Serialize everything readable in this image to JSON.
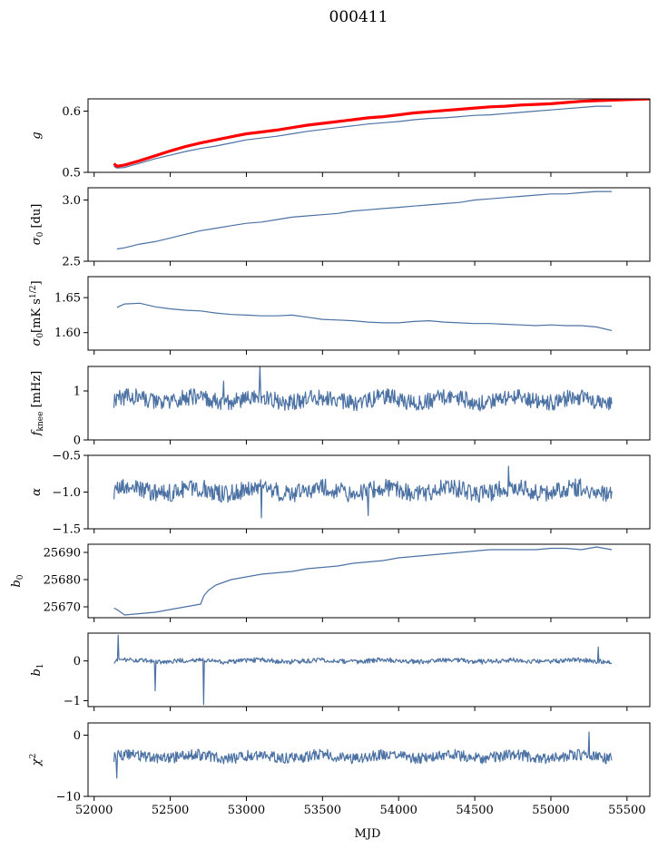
{
  "title": "000411",
  "xlabel": "MJD",
  "colors": {
    "series": "#4c72a4",
    "reference": "#ff0000",
    "axes": "#000000"
  },
  "chart_data": [
    {
      "type": "line",
      "id": "g",
      "ylabel": "g",
      "xlim": [
        51960,
        55650
      ],
      "ylim": [
        0.5,
        0.62
      ],
      "yticks": [
        0.5,
        0.6
      ],
      "ytick_labels": [
        "0.5",
        "0.6"
      ],
      "series": [
        {
          "style": "thin-blue",
          "x": [
            52130,
            52150,
            52200,
            52300,
            52400,
            52500,
            52600,
            52700,
            52800,
            52900,
            53000,
            53100,
            53200,
            53300,
            53400,
            53500,
            53600,
            53700,
            53800,
            53900,
            54000,
            54100,
            54200,
            54300,
            54400,
            54500,
            54600,
            54700,
            54800,
            54900,
            55000,
            55100,
            55200,
            55300,
            55400
          ],
          "y": [
            0.51,
            0.507,
            0.508,
            0.515,
            0.522,
            0.528,
            0.534,
            0.539,
            0.543,
            0.548,
            0.553,
            0.556,
            0.559,
            0.563,
            0.567,
            0.57,
            0.573,
            0.576,
            0.579,
            0.581,
            0.583,
            0.586,
            0.588,
            0.589,
            0.591,
            0.593,
            0.594,
            0.596,
            0.598,
            0.6,
            0.602,
            0.604,
            0.606,
            0.608,
            0.608
          ]
        },
        {
          "style": "thick-red",
          "x": [
            52130,
            52150,
            52200,
            52300,
            52400,
            52500,
            52600,
            52700,
            52800,
            52900,
            53000,
            53100,
            53200,
            53300,
            53400,
            53500,
            53600,
            53700,
            53800,
            53900,
            54000,
            54100,
            54200,
            54300,
            54400,
            54500,
            54600,
            54700,
            54800,
            54900,
            55000,
            55100,
            55200,
            55300,
            55400,
            55650
          ],
          "y": [
            0.514,
            0.51,
            0.512,
            0.519,
            0.527,
            0.535,
            0.542,
            0.548,
            0.553,
            0.558,
            0.563,
            0.566,
            0.569,
            0.573,
            0.577,
            0.58,
            0.583,
            0.586,
            0.589,
            0.591,
            0.594,
            0.597,
            0.599,
            0.601,
            0.603,
            0.605,
            0.607,
            0.608,
            0.61,
            0.611,
            0.612,
            0.614,
            0.616,
            0.617,
            0.618,
            0.62
          ]
        }
      ]
    },
    {
      "type": "line",
      "id": "sigma0_du",
      "ylabel": "σ0 [du]",
      "xlim": [
        51960,
        55650
      ],
      "ylim": [
        2.5,
        3.1
      ],
      "yticks": [
        2.5,
        3.0
      ],
      "ytick_labels": [
        "2.5",
        "3.0"
      ],
      "series": [
        {
          "style": "blue",
          "x": [
            52150,
            52200,
            52300,
            52400,
            52500,
            52600,
            52700,
            52800,
            52900,
            53000,
            53100,
            53200,
            53300,
            53400,
            53500,
            53600,
            53700,
            53800,
            53900,
            54000,
            54100,
            54200,
            54300,
            54400,
            54500,
            54600,
            54700,
            54800,
            54900,
            55000,
            55100,
            55200,
            55300,
            55400
          ],
          "y": [
            2.6,
            2.61,
            2.64,
            2.66,
            2.69,
            2.72,
            2.75,
            2.77,
            2.79,
            2.81,
            2.82,
            2.84,
            2.86,
            2.87,
            2.88,
            2.89,
            2.91,
            2.92,
            2.93,
            2.94,
            2.95,
            2.96,
            2.97,
            2.98,
            3.0,
            3.01,
            3.02,
            3.03,
            3.04,
            3.05,
            3.05,
            3.06,
            3.07,
            3.07
          ]
        }
      ]
    },
    {
      "type": "line",
      "id": "sigma0_mks",
      "ylabel": "σ0[mK s^1/2]",
      "xlim": [
        51960,
        55650
      ],
      "ylim": [
        1.575,
        1.68
      ],
      "yticks": [
        1.6,
        1.65
      ],
      "ytick_labels": [
        "1.60",
        "1.65"
      ],
      "series": [
        {
          "style": "blue",
          "x": [
            52150,
            52200,
            52300,
            52400,
            52500,
            52600,
            52700,
            52800,
            52900,
            53000,
            53100,
            53200,
            53300,
            53400,
            53500,
            53600,
            53700,
            53800,
            53900,
            54000,
            54100,
            54200,
            54300,
            54400,
            54500,
            54600,
            54700,
            54800,
            54900,
            55000,
            55100,
            55200,
            55300,
            55400
          ],
          "y": [
            1.636,
            1.641,
            1.642,
            1.637,
            1.634,
            1.632,
            1.631,
            1.628,
            1.626,
            1.625,
            1.624,
            1.624,
            1.625,
            1.622,
            1.619,
            1.618,
            1.617,
            1.615,
            1.614,
            1.614,
            1.616,
            1.617,
            1.615,
            1.614,
            1.613,
            1.613,
            1.612,
            1.611,
            1.61,
            1.611,
            1.61,
            1.61,
            1.608,
            1.603
          ]
        }
      ]
    },
    {
      "type": "line",
      "id": "fknee",
      "ylabel": "f_knee [mHz]",
      "xlim": [
        51960,
        55650
      ],
      "ylim": [
        0,
        1.5
      ],
      "yticks": [
        0,
        1
      ],
      "ytick_labels": [
        "0",
        "1"
      ],
      "noise": {
        "x_start": 52130,
        "x_end": 55400,
        "n": 700,
        "mean": 0.82,
        "amplitude": 0.17,
        "spikes": [
          [
            53090,
            1.5
          ],
          [
            52850,
            1.2
          ]
        ]
      },
      "series": [
        {
          "style": "blue-noisy"
        }
      ]
    },
    {
      "type": "line",
      "id": "alpha",
      "ylabel": "α",
      "xlim": [
        51960,
        55650
      ],
      "ylim": [
        -1.5,
        -0.5
      ],
      "yticks": [
        -1.5,
        -1.0,
        -0.5
      ],
      "ytick_labels": [
        "−1.5",
        "−1.0",
        "−0.5"
      ],
      "noise": {
        "x_start": 52130,
        "x_end": 55400,
        "n": 700,
        "mean": -0.98,
        "amplitude": 0.12,
        "spikes": [
          [
            54720,
            -0.65
          ],
          [
            53100,
            -1.35
          ],
          [
            53800,
            -1.32
          ]
        ]
      },
      "series": [
        {
          "style": "blue-noisy"
        }
      ]
    },
    {
      "type": "line",
      "id": "b0",
      "ylabel": "b0",
      "xlim": [
        51960,
        55650
      ],
      "ylim": [
        25666,
        25693
      ],
      "yticks": [
        25670,
        25680,
        25690
      ],
      "ytick_labels": [
        "25670",
        "25680",
        "25690"
      ],
      "series": [
        {
          "style": "blue",
          "x": [
            52130,
            52150,
            52200,
            52300,
            52400,
            52500,
            52600,
            52700,
            52720,
            52750,
            52800,
            52900,
            53000,
            53100,
            53200,
            53300,
            53400,
            53500,
            53600,
            53700,
            53800,
            53900,
            54000,
            54100,
            54200,
            54300,
            54400,
            54500,
            54600,
            54700,
            54800,
            54900,
            55000,
            55100,
            55200,
            55300,
            55400
          ],
          "y": [
            25669.5,
            25669,
            25667,
            25667.5,
            25668,
            25669,
            25670,
            25671,
            25674,
            25676,
            25678,
            25680,
            25681,
            25682,
            25682.5,
            25683,
            25684,
            25684.5,
            25685,
            25686,
            25686.5,
            25687,
            25688,
            25688.5,
            25689,
            25689.5,
            25690,
            25690.5,
            25691,
            25691,
            25691,
            25691,
            25691.5,
            25691.5,
            25691,
            25692,
            25691
          ]
        }
      ]
    },
    {
      "type": "line",
      "id": "b1",
      "ylabel": "b1",
      "xlim": [
        51960,
        55650
      ],
      "ylim": [
        -1.15,
        0.7
      ],
      "yticks": [
        -1,
        0
      ],
      "ytick_labels": [
        "−1",
        "0"
      ],
      "noise": {
        "x_start": 52130,
        "x_end": 55400,
        "n": 700,
        "mean": 0.0,
        "amplitude": 0.06,
        "spikes": [
          [
            52160,
            0.65
          ],
          [
            52720,
            -1.1
          ],
          [
            52400,
            -0.75
          ],
          [
            55310,
            0.35
          ]
        ]
      },
      "series": [
        {
          "style": "blue-noisy"
        }
      ]
    },
    {
      "type": "line",
      "id": "chi2",
      "ylabel": "χ^2",
      "xlim": [
        51960,
        55650
      ],
      "ylim": [
        -10,
        2
      ],
      "yticks": [
        -10,
        0
      ],
      "ytick_labels": [
        "−10",
        "0"
      ],
      "noise": {
        "x_start": 52130,
        "x_end": 55400,
        "n": 700,
        "mean": -3.5,
        "amplitude": 0.9,
        "spikes": [
          [
            52150,
            -7
          ],
          [
            55250,
            0.5
          ]
        ]
      },
      "series": [
        {
          "style": "blue-noisy"
        }
      ]
    }
  ],
  "xticks": [
    52000,
    52500,
    53000,
    53500,
    54000,
    54500,
    55000,
    55500
  ],
  "xtick_labels": [
    "52000",
    "52500",
    "53000",
    "53500",
    "54000",
    "54500",
    "55000",
    "55500"
  ]
}
